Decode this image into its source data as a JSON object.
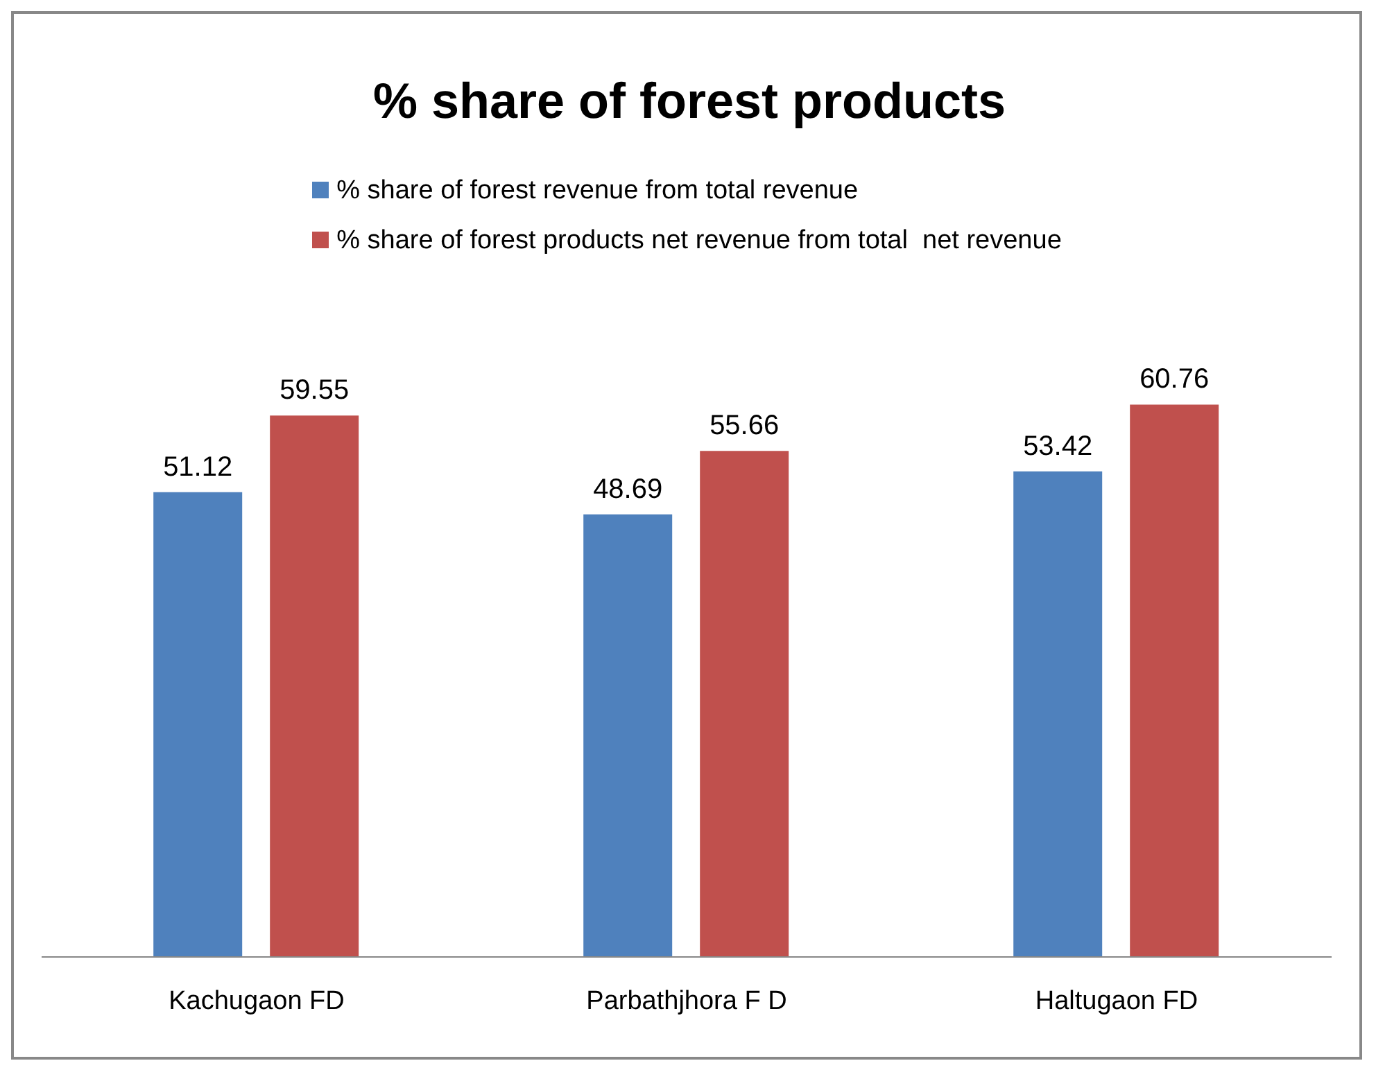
{
  "chart_data": {
    "type": "bar",
    "title": "% share of forest products",
    "categories": [
      "Kachugaon FD",
      "Parbathjhora F D",
      "Haltugaon FD"
    ],
    "series": [
      {
        "name": "% share of forest revenue from total revenue",
        "color": "#4f81bd",
        "values": [
          51.12,
          48.69,
          53.42
        ]
      },
      {
        "name": "% share of forest products net revenue from total  net revenue",
        "color": "#c0504d",
        "values": [
          59.55,
          55.66,
          60.76
        ]
      }
    ],
    "data_labels": true,
    "legend": "top"
  }
}
